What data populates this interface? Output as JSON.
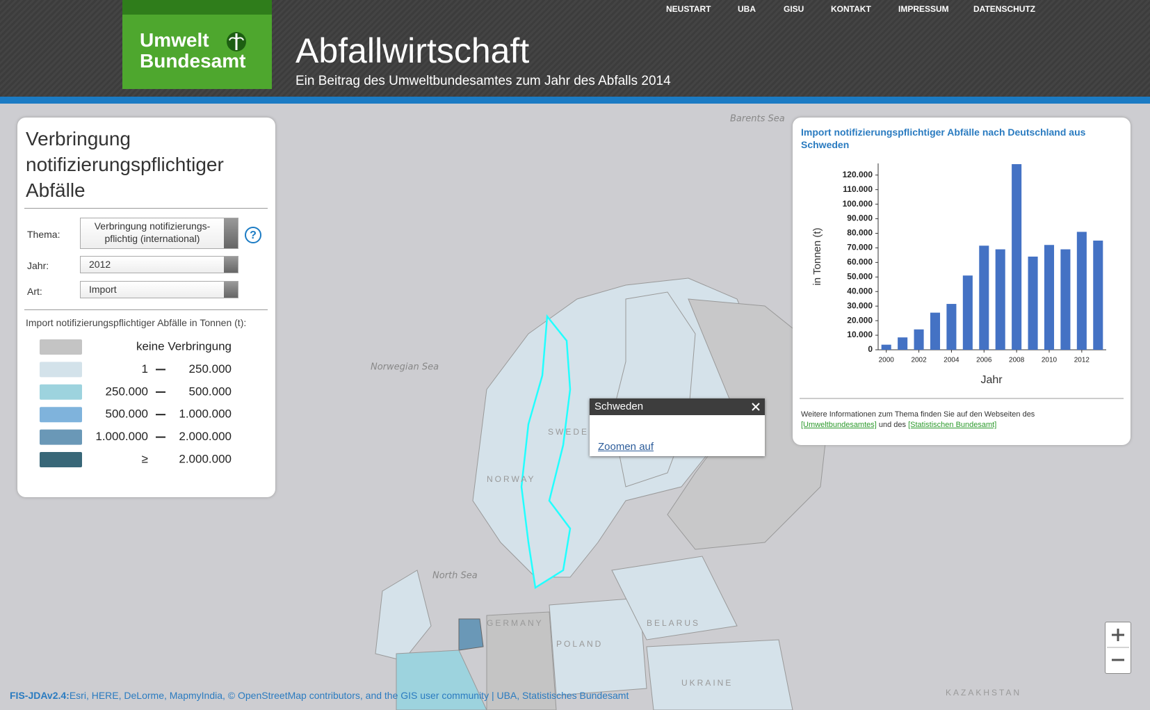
{
  "header": {
    "logo_line1": "Umwelt",
    "logo_line2": "Bundesamt",
    "title": "Abfallwirtschaft",
    "subtitle": "Ein Beitrag des Umweltbundesamtes zum Jahr des Abfalls 2014"
  },
  "nav": [
    "NEUSTART",
    "UBA",
    "GISU",
    "KONTAKT",
    "IMPRESSUM",
    "DATENSCHUTZ"
  ],
  "panel": {
    "title_lines": [
      "Verbringung",
      "notifizierungspflichtiger",
      "Abfälle"
    ],
    "fields": [
      {
        "label": "Thema:",
        "value_lines": [
          "Verbringung notifizierungs-",
          "pflichtig (international)"
        ]
      },
      {
        "label": "Jahr:",
        "value_lines": [
          "2012"
        ]
      },
      {
        "label": "Art:",
        "value_lines": [
          "Import"
        ]
      }
    ],
    "help": "?",
    "legend_title": "Import notifizierungspflichtiger Abfälle in Tonnen (t):",
    "legend": [
      {
        "color": "#c4c4c4",
        "label": "keine Verbringung"
      },
      {
        "color": "#d3e2ea",
        "from": "1",
        "to": "250.000"
      },
      {
        "color": "#9dd3de",
        "from": "250.000",
        "to": "500.000"
      },
      {
        "color": "#7fb3dc",
        "from": "500.000",
        "to": "1.000.000"
      },
      {
        "color": "#6a98b7",
        "from": "1.000.000",
        "to": "2.000.000"
      },
      {
        "color": "#386778",
        "from": "≥",
        "to": "2.000.000"
      }
    ]
  },
  "popup": {
    "title": "Schweden",
    "link": "Zoomen auf"
  },
  "map_labels": [
    "Barents Sea",
    "Norwegian Sea",
    "North Sea",
    "SWEDEN",
    "NORWAY",
    "GERMANY",
    "POLAND",
    "BELARUS",
    "UKRAINE",
    "KAZAKHSTAN"
  ],
  "footer": {
    "version": "FIS-JDAv2.4:",
    "attribution": "Esri, HERE, DeLorme, MapmyIndia, © OpenStreetMap contributors, and the GIS user community | UBA, Statistisches Bundesamt"
  },
  "chart_info": {
    "text1": "Weitere Informationen zum Thema finden Sie auf den Webseiten des",
    "link1": "[Umweltbundesamtes]",
    "text2": "und des",
    "link2": "[Statistischen Bundesamt]"
  },
  "chart_data": {
    "type": "bar",
    "title": "Import notifizierungspflichtiger Abfälle nach Deutschland aus Schweden",
    "x_label": "Jahr",
    "y_label": "in Tonnen (t)",
    "color": "#4472c4",
    "x": [
      2000,
      2001,
      2002,
      2003,
      2004,
      2005,
      2006,
      2007,
      2008,
      2009,
      2010,
      2011,
      2012,
      2013
    ],
    "values": [
      3500,
      8500,
      14000,
      25500,
      31500,
      51000,
      71500,
      69000,
      127500,
      64000,
      72000,
      69000,
      81000,
      75000
    ],
    "xlim": [
      1999.5,
      2013.5
    ],
    "xticks": [
      2000,
      2002,
      2004,
      2006,
      2008,
      2010,
      2012
    ],
    "ylim": [
      0,
      128000
    ],
    "yticks": [
      0,
      {
        "value": 10000,
        "label": "10.000"
      },
      {
        "value": 20000,
        "label": "20.000"
      },
      {
        "value": 30000,
        "label": "30.000"
      },
      {
        "value": 40000,
        "label": "40.000"
      },
      {
        "value": 50000,
        "label": "50.000"
      },
      {
        "value": 60000,
        "label": "60.000"
      },
      {
        "value": 70000,
        "label": "70.000"
      },
      {
        "value": 80000,
        "label": "80.000"
      },
      {
        "value": 90000,
        "label": "90.000"
      },
      {
        "value": 100000,
        "label": "100.000"
      },
      {
        "value": 110000,
        "label": "110.000"
      },
      {
        "value": 120000,
        "label": "120.000"
      }
    ]
  }
}
